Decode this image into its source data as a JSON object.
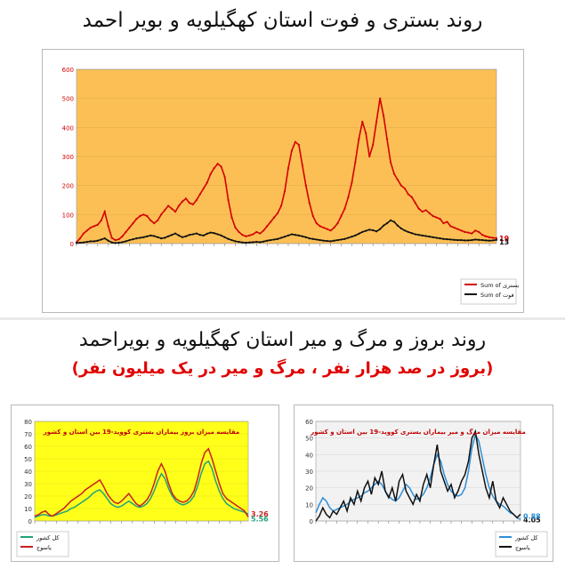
{
  "top": {
    "title": "روند بستری و فوت استان کهگیلویه و بویر احمد"
  },
  "bottom": {
    "title": "روند بروز و مرگ و میر استان کهگیلویه و بویراحمد",
    "subtitle": "(بروز در صد هزار نفر ، مرگ و میر در یک میلیون نفر)"
  },
  "chart_data": [
    {
      "type": "line",
      "background": "#fbbf55",
      "x": [
        1,
        2,
        3,
        4,
        5,
        6,
        7,
        8,
        9,
        10,
        11,
        12,
        13,
        14,
        15,
        16,
        17,
        18,
        19,
        20,
        21,
        22,
        23,
        24,
        25,
        26,
        27,
        28,
        29,
        30,
        31,
        32,
        33,
        34,
        35,
        36,
        37,
        38,
        39,
        40,
        41,
        42,
        43,
        44,
        45,
        46,
        47,
        48,
        49,
        50,
        51,
        52,
        53,
        54,
        55,
        56,
        57,
        58,
        59,
        60,
        61,
        62,
        63,
        64,
        65,
        66,
        67,
        68,
        69,
        70,
        71,
        72,
        73,
        74,
        75,
        76,
        77,
        78,
        79,
        80,
        81,
        82,
        83,
        84,
        85,
        86,
        87,
        88,
        89,
        90,
        91,
        92,
        93,
        94,
        95,
        96,
        97,
        98,
        99,
        100,
        101,
        102,
        103,
        104,
        105,
        106,
        107,
        108,
        109,
        110,
        111,
        112,
        113,
        114,
        115,
        116,
        117,
        118,
        119,
        120
      ],
      "ylim": [
        0,
        600
      ],
      "yticks": [
        0,
        100,
        200,
        300,
        400,
        500,
        600
      ],
      "series": [
        {
          "name": "Sum of بستری",
          "color": "#d40000",
          "values": [
            5,
            18,
            35,
            45,
            55,
            60,
            65,
            80,
            110,
            60,
            20,
            12,
            15,
            25,
            40,
            55,
            70,
            85,
            95,
            100,
            95,
            80,
            70,
            80,
            100,
            115,
            130,
            120,
            110,
            130,
            145,
            155,
            140,
            135,
            150,
            170,
            190,
            210,
            240,
            260,
            275,
            265,
            230,
            150,
            90,
            55,
            40,
            30,
            25,
            28,
            32,
            40,
            35,
            45,
            60,
            75,
            90,
            105,
            130,
            180,
            260,
            320,
            350,
            340,
            270,
            200,
            140,
            95,
            70,
            60,
            55,
            50,
            45,
            55,
            70,
            95,
            120,
            160,
            210,
            280,
            360,
            420,
            380,
            300,
            340,
            420,
            500,
            440,
            360,
            280,
            240,
            220,
            200,
            190,
            170,
            160,
            140,
            120,
            110,
            115,
            105,
            95,
            90,
            85,
            70,
            75,
            60,
            55,
            50,
            45,
            40,
            38,
            35,
            45,
            40,
            30,
            25,
            22,
            20,
            19
          ]
        },
        {
          "name": "Sum of فوت",
          "color": "#111111",
          "values": [
            2,
            3,
            4,
            6,
            8,
            8,
            10,
            14,
            18,
            10,
            4,
            2,
            3,
            5,
            8,
            12,
            15,
            18,
            20,
            22,
            25,
            28,
            26,
            22,
            18,
            20,
            25,
            30,
            35,
            28,
            22,
            25,
            30,
            32,
            35,
            30,
            28,
            34,
            38,
            36,
            32,
            28,
            22,
            16,
            12,
            8,
            6,
            4,
            3,
            4,
            5,
            6,
            5,
            7,
            10,
            12,
            14,
            16,
            20,
            24,
            28,
            32,
            30,
            28,
            25,
            22,
            18,
            16,
            14,
            12,
            10,
            9,
            8,
            10,
            12,
            14,
            16,
            20,
            24,
            28,
            34,
            40,
            44,
            48,
            46,
            42,
            50,
            62,
            70,
            80,
            75,
            62,
            52,
            45,
            40,
            36,
            32,
            30,
            28,
            26,
            24,
            22,
            20,
            18,
            16,
            15,
            14,
            13,
            12,
            12,
            11,
            11,
            12,
            14,
            13,
            12,
            11,
            10,
            11,
            13
          ]
        }
      ],
      "end_labels": [
        "19",
        "13"
      ],
      "legend": "bottom-right"
    },
    {
      "type": "line",
      "title": "مقایسه میزان بروز بیماران بستری کووید-19 بین استان و کشور",
      "background": "#ffff1a",
      "x": [
        1,
        2,
        3,
        4,
        5,
        6,
        7,
        8,
        9,
        10,
        11,
        12,
        13,
        14,
        15,
        16,
        17,
        18,
        19,
        20,
        21,
        22,
        23,
        24,
        25,
        26,
        27,
        28,
        29,
        30,
        31,
        32,
        33,
        34,
        35,
        36,
        37,
        38,
        39,
        40,
        41,
        42,
        43,
        44,
        45,
        46,
        47,
        48,
        49,
        50,
        51,
        52,
        53,
        54,
        55,
        56,
        57,
        58,
        59,
        60
      ],
      "ylim": [
        0,
        80
      ],
      "yticks": [
        0,
        10,
        20,
        30,
        40,
        50,
        60,
        70,
        80
      ],
      "series": [
        {
          "name": "کل کشور",
          "color": "#21a37a",
          "values": [
            3,
            4,
            5,
            5,
            4,
            4,
            5,
            6,
            7,
            8,
            10,
            11,
            13,
            15,
            17,
            19,
            22,
            24,
            25,
            22,
            18,
            14,
            12,
            11,
            12,
            14,
            16,
            14,
            12,
            11,
            12,
            14,
            18,
            24,
            32,
            38,
            34,
            26,
            20,
            16,
            14,
            13,
            14,
            16,
            20,
            28,
            38,
            46,
            48,
            42,
            32,
            24,
            18,
            14,
            12,
            10,
            9,
            8,
            7,
            5.56
          ]
        },
        {
          "name": "یاسوج",
          "color": "#c82020",
          "values": [
            4,
            5,
            7,
            8,
            5,
            4,
            6,
            8,
            10,
            13,
            16,
            18,
            20,
            22,
            25,
            27,
            29,
            31,
            33,
            28,
            22,
            18,
            15,
            14,
            16,
            19,
            22,
            18,
            14,
            12,
            14,
            17,
            22,
            30,
            40,
            46,
            40,
            30,
            22,
            18,
            16,
            15,
            16,
            19,
            24,
            34,
            46,
            55,
            58,
            50,
            40,
            30,
            22,
            18,
            16,
            14,
            12,
            10,
            8,
            3.26
          ]
        }
      ],
      "end_labels": [
        "3.26",
        "5.56"
      ],
      "legend": "bottom-left"
    },
    {
      "type": "line",
      "title": "مقایسه میزان مرگ و میر بیماران بستری کووید-19 بین استان و کشور",
      "background": "#f2f2f2",
      "x": [
        1,
        2,
        3,
        4,
        5,
        6,
        7,
        8,
        9,
        10,
        11,
        12,
        13,
        14,
        15,
        16,
        17,
        18,
        19,
        20,
        21,
        22,
        23,
        24,
        25,
        26,
        27,
        28,
        29,
        30,
        31,
        32,
        33,
        34,
        35,
        36,
        37,
        38,
        39,
        40,
        41,
        42,
        43,
        44,
        45,
        46,
        47,
        48,
        49,
        50,
        51,
        52,
        53,
        54,
        55,
        56,
        57,
        58,
        59,
        60
      ],
      "ylim": [
        0,
        60
      ],
      "yticks": [
        0,
        10,
        20,
        30,
        40,
        50,
        60
      ],
      "series": [
        {
          "name": "کل کشور",
          "color": "#2f8fd6",
          "values": [
            5,
            10,
            14,
            12,
            8,
            6,
            7,
            8,
            9,
            10,
            12,
            13,
            14,
            15,
            17,
            18,
            20,
            22,
            24,
            22,
            18,
            15,
            13,
            12,
            14,
            18,
            22,
            20,
            16,
            13,
            14,
            16,
            20,
            26,
            34,
            40,
            36,
            28,
            22,
            18,
            16,
            15,
            16,
            20,
            30,
            44,
            52,
            48,
            38,
            28,
            20,
            15,
            12,
            10,
            9,
            7,
            5,
            4,
            2,
            0.88
          ]
        },
        {
          "name": "یاسوج",
          "color": "#111111",
          "values": [
            0,
            3,
            8,
            4,
            2,
            6,
            4,
            8,
            12,
            6,
            14,
            10,
            18,
            12,
            20,
            24,
            16,
            26,
            22,
            30,
            18,
            14,
            20,
            12,
            24,
            28,
            18,
            14,
            10,
            16,
            12,
            22,
            28,
            20,
            34,
            46,
            30,
            24,
            18,
            22,
            14,
            18,
            24,
            28,
            36,
            50,
            54,
            40,
            30,
            20,
            14,
            24,
            12,
            8,
            14,
            10,
            6,
            4,
            2,
            4.05
          ]
        }
      ],
      "end_labels": [
        "4.05",
        "0.88"
      ],
      "legend": "bottom-left"
    }
  ]
}
